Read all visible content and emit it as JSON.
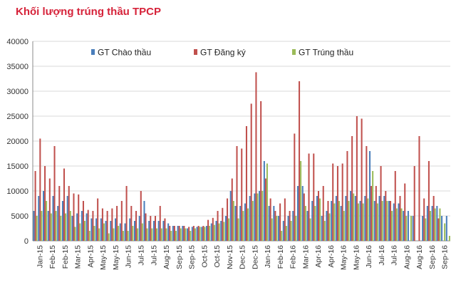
{
  "header": {
    "title": "Khối lượng trúng thầu TPCP",
    "title_color": "#d6233a"
  },
  "chart_data": {
    "type": "bar",
    "ylim": [
      0,
      40000
    ],
    "yticks": [
      "0",
      "5000",
      "10000",
      "15000",
      "20000",
      "25000",
      "30000",
      "35000",
      "40000"
    ],
    "grid": "horizontal",
    "legend_position": "top",
    "month_labels": [
      "Jan-15",
      "Feb-15",
      "Feb-15",
      "Mar-15",
      "Apr-15",
      "May-15",
      "May-15",
      "Jun-15",
      "Jul-15",
      "Jul-15",
      "Aug-15",
      "Sep-15",
      "Sep-15",
      "Oct-15",
      "Oct-15",
      "Nov-15",
      "Dec-15",
      "Dec-15",
      "Jan-16",
      "Feb-16",
      "Feb-16",
      "Mar-16",
      "Apr-16",
      "Apr-16",
      "May-16",
      "May-16",
      "Jun-16",
      "Jul-16",
      "Jul-16",
      "Aug-16",
      "Aug-16",
      "Sep-16",
      "Sep-16"
    ],
    "series": [
      {
        "name": "GT Chào thầu",
        "color": "#4a7ebb",
        "values": [
          6000,
          9000,
          10000,
          6000,
          9000,
          7000,
          8000,
          9000,
          5000,
          5500,
          6000,
          5500,
          4500,
          4500,
          4500,
          4000,
          4000,
          4500,
          3500,
          3500,
          4500,
          4000,
          5000,
          8000,
          4000,
          4000,
          4000,
          4000,
          3500,
          3000,
          3000,
          3000,
          2500,
          2800,
          2800,
          2800,
          3000,
          3500,
          4000,
          4000,
          5000,
          10000,
          7000,
          7000,
          7500,
          9000,
          9500,
          10000,
          16000,
          7000,
          7000,
          5000,
          4000,
          5000,
          6000,
          11000,
          11000,
          6000,
          8000,
          9000,
          5000,
          6000,
          8000,
          9000,
          7000,
          9000,
          10000,
          9000,
          8000,
          9000,
          18000,
          8000,
          9000,
          9000,
          8000,
          7500,
          7500,
          6000,
          6000,
          5000,
          0,
          5000,
          7000,
          7000,
          7000,
          5000,
          5000
        ]
      },
      {
        "name": "GT Đăng ký",
        "color": "#c0504d",
        "values": [
          14000,
          20500,
          15000,
          12500,
          19000,
          11000,
          14500,
          11000,
          9500,
          9300,
          8000,
          6200,
          6000,
          8500,
          6500,
          6000,
          6500,
          7000,
          8000,
          11000,
          7000,
          6000,
          10000,
          5500,
          5000,
          5000,
          7000,
          4500,
          3000,
          3000,
          3000,
          3000,
          2800,
          3000,
          3000,
          3000,
          4200,
          4600,
          6000,
          6600,
          8500,
          12500,
          19000,
          18500,
          23000,
          27500,
          33800,
          28000,
          12500,
          8500,
          6000,
          7500,
          8500,
          6000,
          21500,
          32000,
          9500,
          17500,
          17500,
          10000,
          11000,
          8000,
          15500,
          15000,
          15500,
          18000,
          21000,
          25000,
          24500,
          19000,
          11000,
          11000,
          15000,
          10000,
          8000,
          14000,
          9000,
          11500,
          0,
          15000,
          21000,
          8500,
          16000,
          9000,
          4500,
          0,
          0
        ]
      },
      {
        "name": "GT Trúng thầu",
        "color": "#9bbb59",
        "values": [
          5000,
          6000,
          8000,
          5500,
          6000,
          5000,
          5500,
          6000,
          2800,
          3500,
          4000,
          2000,
          3000,
          2500,
          3500,
          1500,
          2500,
          3000,
          2000,
          2000,
          3000,
          2500,
          3500,
          2500,
          2500,
          2500,
          2500,
          2500,
          2000,
          2000,
          2500,
          2500,
          2000,
          2500,
          2800,
          2800,
          3000,
          3200,
          3500,
          3800,
          4500,
          8000,
          4500,
          6000,
          6500,
          8000,
          9500,
          10000,
          15500,
          4500,
          5000,
          2000,
          3000,
          4000,
          5000,
          16000,
          7000,
          4500,
          7000,
          8500,
          4000,
          5500,
          7500,
          8000,
          6000,
          8000,
          9500,
          7500,
          7500,
          8500,
          14000,
          7500,
          8000,
          8000,
          6000,
          6500,
          6500,
          5000,
          5000,
          0,
          0,
          4500,
          6000,
          6500,
          6500,
          3500,
          1000
        ]
      }
    ]
  }
}
